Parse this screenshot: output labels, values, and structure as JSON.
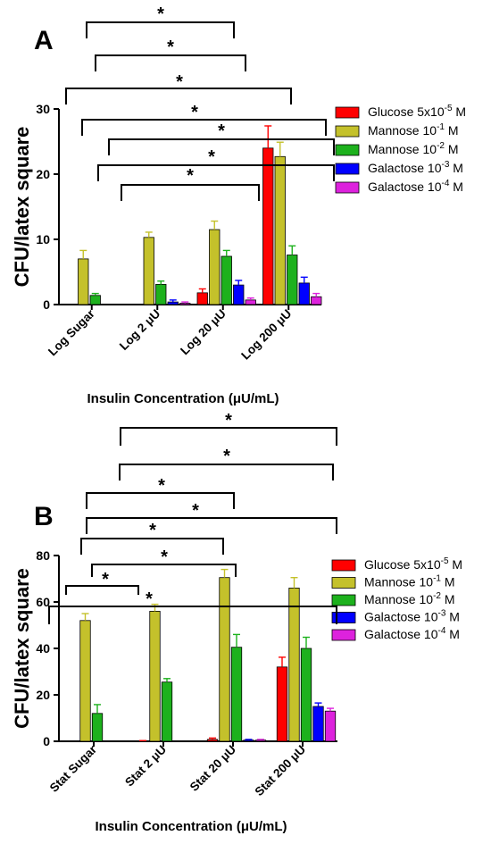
{
  "chart_data": [
    {
      "type": "bar",
      "panel": "A",
      "ylabel": "CFU/latex square",
      "xlabel": "Insulin Concentration (μU/mL)",
      "ylim": [
        0,
        30
      ],
      "yticks": [
        "0",
        "10",
        "20",
        "30"
      ],
      "categories": [
        "Log Sugar",
        "Log 2 μU",
        "Log 20 μU",
        "Log 200 μU"
      ],
      "legend_position": "right",
      "series": [
        {
          "name": "Glucose 5x10",
          "exp": "-5",
          "unit": " M",
          "color": "#ff0000",
          "values": [
            0,
            0,
            1.8,
            24.0
          ],
          "errors": [
            0,
            0,
            0.6,
            3.4
          ]
        },
        {
          "name": "Mannose 10",
          "exp": "-1",
          "unit": " M",
          "color": "#c4c12b",
          "values": [
            7.0,
            10.3,
            11.5,
            22.7
          ],
          "errors": [
            1.3,
            0.8,
            1.3,
            2.2
          ]
        },
        {
          "name": "Mannose 10",
          "exp": "-2",
          "unit": " M",
          "color": "#1db11d",
          "values": [
            1.4,
            3.1,
            7.4,
            7.6
          ],
          "errors": [
            0.3,
            0.5,
            0.9,
            1.4
          ]
        },
        {
          "name": "Galactose 10",
          "exp": "-3",
          "unit": " M",
          "color": "#0000ff",
          "values": [
            0,
            0.4,
            3.0,
            3.3
          ],
          "errors": [
            0,
            0.3,
            0.7,
            0.9
          ]
        },
        {
          "name": "Galactose 10",
          "exp": "-4",
          "unit": " M",
          "color": "#dd22dd",
          "values": [
            0,
            0.2,
            0.7,
            1.2
          ],
          "errors": [
            0,
            0.2,
            0.3,
            0.5
          ]
        }
      ],
      "significance": [
        {
          "from": [
            0,
            1
          ],
          "to": [
            2,
            1
          ],
          "label": "*"
        },
        {
          "from": [
            0,
            2
          ],
          "to": [
            2,
            2
          ],
          "label": "*"
        },
        {
          "from": [
            0,
            0
          ],
          "to": [
            3,
            1
          ],
          "label": "*"
        },
        {
          "from": [
            0,
            1
          ],
          "to": [
            3,
            1
          ],
          "label": "*"
        },
        {
          "from": [
            0,
            2
          ],
          "to": [
            3,
            2
          ],
          "label": "*"
        },
        {
          "from": [
            0,
            2
          ],
          "to": [
            3,
            2
          ],
          "label": "*"
        },
        {
          "from": [
            1,
            1
          ],
          "to": [
            2,
            2
          ],
          "label": "*"
        }
      ]
    },
    {
      "type": "bar",
      "panel": "B",
      "ylabel": "CFU/latex square",
      "xlabel": "Insulin Concentration (μU/mL)",
      "ylim": [
        0,
        80
      ],
      "yticks": [
        "0",
        "20",
        "40",
        "60",
        "80"
      ],
      "categories": [
        "Stat Sugar",
        "Stat 2 μU",
        "Stat 20 μU",
        "Stat 200 μU"
      ],
      "legend_position": "right",
      "series": [
        {
          "name": "Glucose 5x10",
          "exp": "-5",
          "unit": " M",
          "color": "#ff0000",
          "values": [
            0,
            0,
            0.8,
            32.0
          ],
          "errors": [
            0,
            0.3,
            0.6,
            4.2
          ]
        },
        {
          "name": "Mannose 10",
          "exp": "-1",
          "unit": " M",
          "color": "#c4c12b",
          "values": [
            52.0,
            56.0,
            70.5,
            66.0
          ],
          "errors": [
            3.0,
            3.0,
            3.5,
            4.5
          ]
        },
        {
          "name": "Mannose 10",
          "exp": "-2",
          "unit": " M",
          "color": "#1db11d",
          "values": [
            12.0,
            25.5,
            40.5,
            40.0
          ],
          "errors": [
            3.8,
            1.5,
            5.5,
            4.8
          ]
        },
        {
          "name": "Galactose 10",
          "exp": "-3",
          "unit": " M",
          "color": "#0000ff",
          "values": [
            0,
            0,
            0.5,
            15.0
          ],
          "errors": [
            0,
            0,
            0.3,
            1.5
          ]
        },
        {
          "name": "Galactose 10",
          "exp": "-4",
          "unit": " M",
          "color": "#dd22dd",
          "values": [
            0,
            0,
            0.5,
            13.0
          ],
          "errors": [
            0,
            0,
            0.3,
            1.2
          ]
        }
      ],
      "significance": [
        {
          "from": [
            0,
            1
          ],
          "to": [
            2,
            1
          ],
          "label": "*"
        },
        {
          "from": [
            0,
            1
          ],
          "to": [
            2,
            2
          ],
          "label": "*"
        },
        {
          "from": [
            0,
            0
          ],
          "to": [
            2,
            1
          ],
          "label": "*"
        },
        {
          "from": [
            0,
            2
          ],
          "to": [
            2,
            2
          ],
          "label": "*"
        },
        {
          "from": [
            0,
            2
          ],
          "to": [
            1,
            1
          ],
          "label": "*"
        },
        {
          "from": [
            0,
            0
          ],
          "to": [
            3,
            1
          ],
          "label": "*"
        },
        {
          "from": [
            1,
            1
          ],
          "to": [
            3,
            3
          ],
          "label": "*"
        },
        {
          "from": [
            1,
            1
          ],
          "to": [
            3,
            3
          ],
          "label": "*"
        }
      ]
    }
  ]
}
